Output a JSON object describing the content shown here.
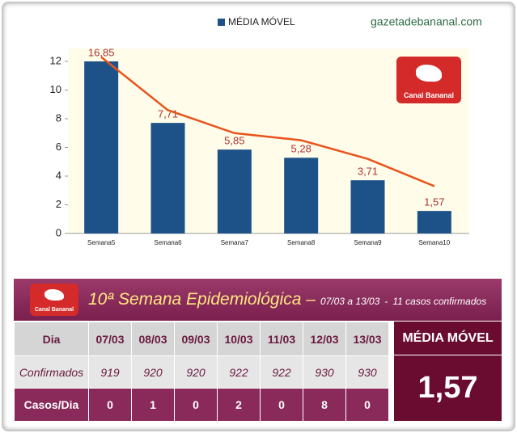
{
  "site": "gazetadebananal.com",
  "logo": "Canal Bananal",
  "chart_data": {
    "type": "bar",
    "categories": [
      "Semana5",
      "Semana6",
      "Semana7",
      "Semana8",
      "Semana9",
      "Semana10"
    ],
    "series": [
      {
        "name": "MÉDIA MÓVEL",
        "color": "#1d5288",
        "values": [
          16.85,
          7.71,
          5.85,
          5.28,
          3.71,
          1.57
        ],
        "value_labels": [
          "16,85",
          "7,71",
          "5,85",
          "5,28",
          "3,71",
          "1,57"
        ]
      }
    ],
    "line_values": [
      12.3,
      8.6,
      7.0,
      6.5,
      5.2,
      3.3
    ],
    "line_color": "#e8541c",
    "ylim": [
      0,
      12
    ],
    "yticks": [
      0,
      2,
      4,
      6,
      8,
      10,
      12
    ]
  },
  "table": {
    "title": "10ª Semana Epidemiológica –",
    "period": "07/03 a 13/03",
    "separator": "-",
    "cases": "11 casos confirmados",
    "rows": [
      [
        "Dia",
        "07/03",
        "08/03",
        "09/03",
        "10/03",
        "11/03",
        "12/03",
        "13/03"
      ],
      [
        "Confirmados",
        "919",
        "920",
        "920",
        "922",
        "922",
        "930",
        "930"
      ],
      [
        "Casos/Dia",
        "0",
        "1",
        "0",
        "2",
        "0",
        "8",
        "0"
      ]
    ],
    "summary_label": "MÉDIA MÓVEL",
    "summary_value": "1,57"
  }
}
